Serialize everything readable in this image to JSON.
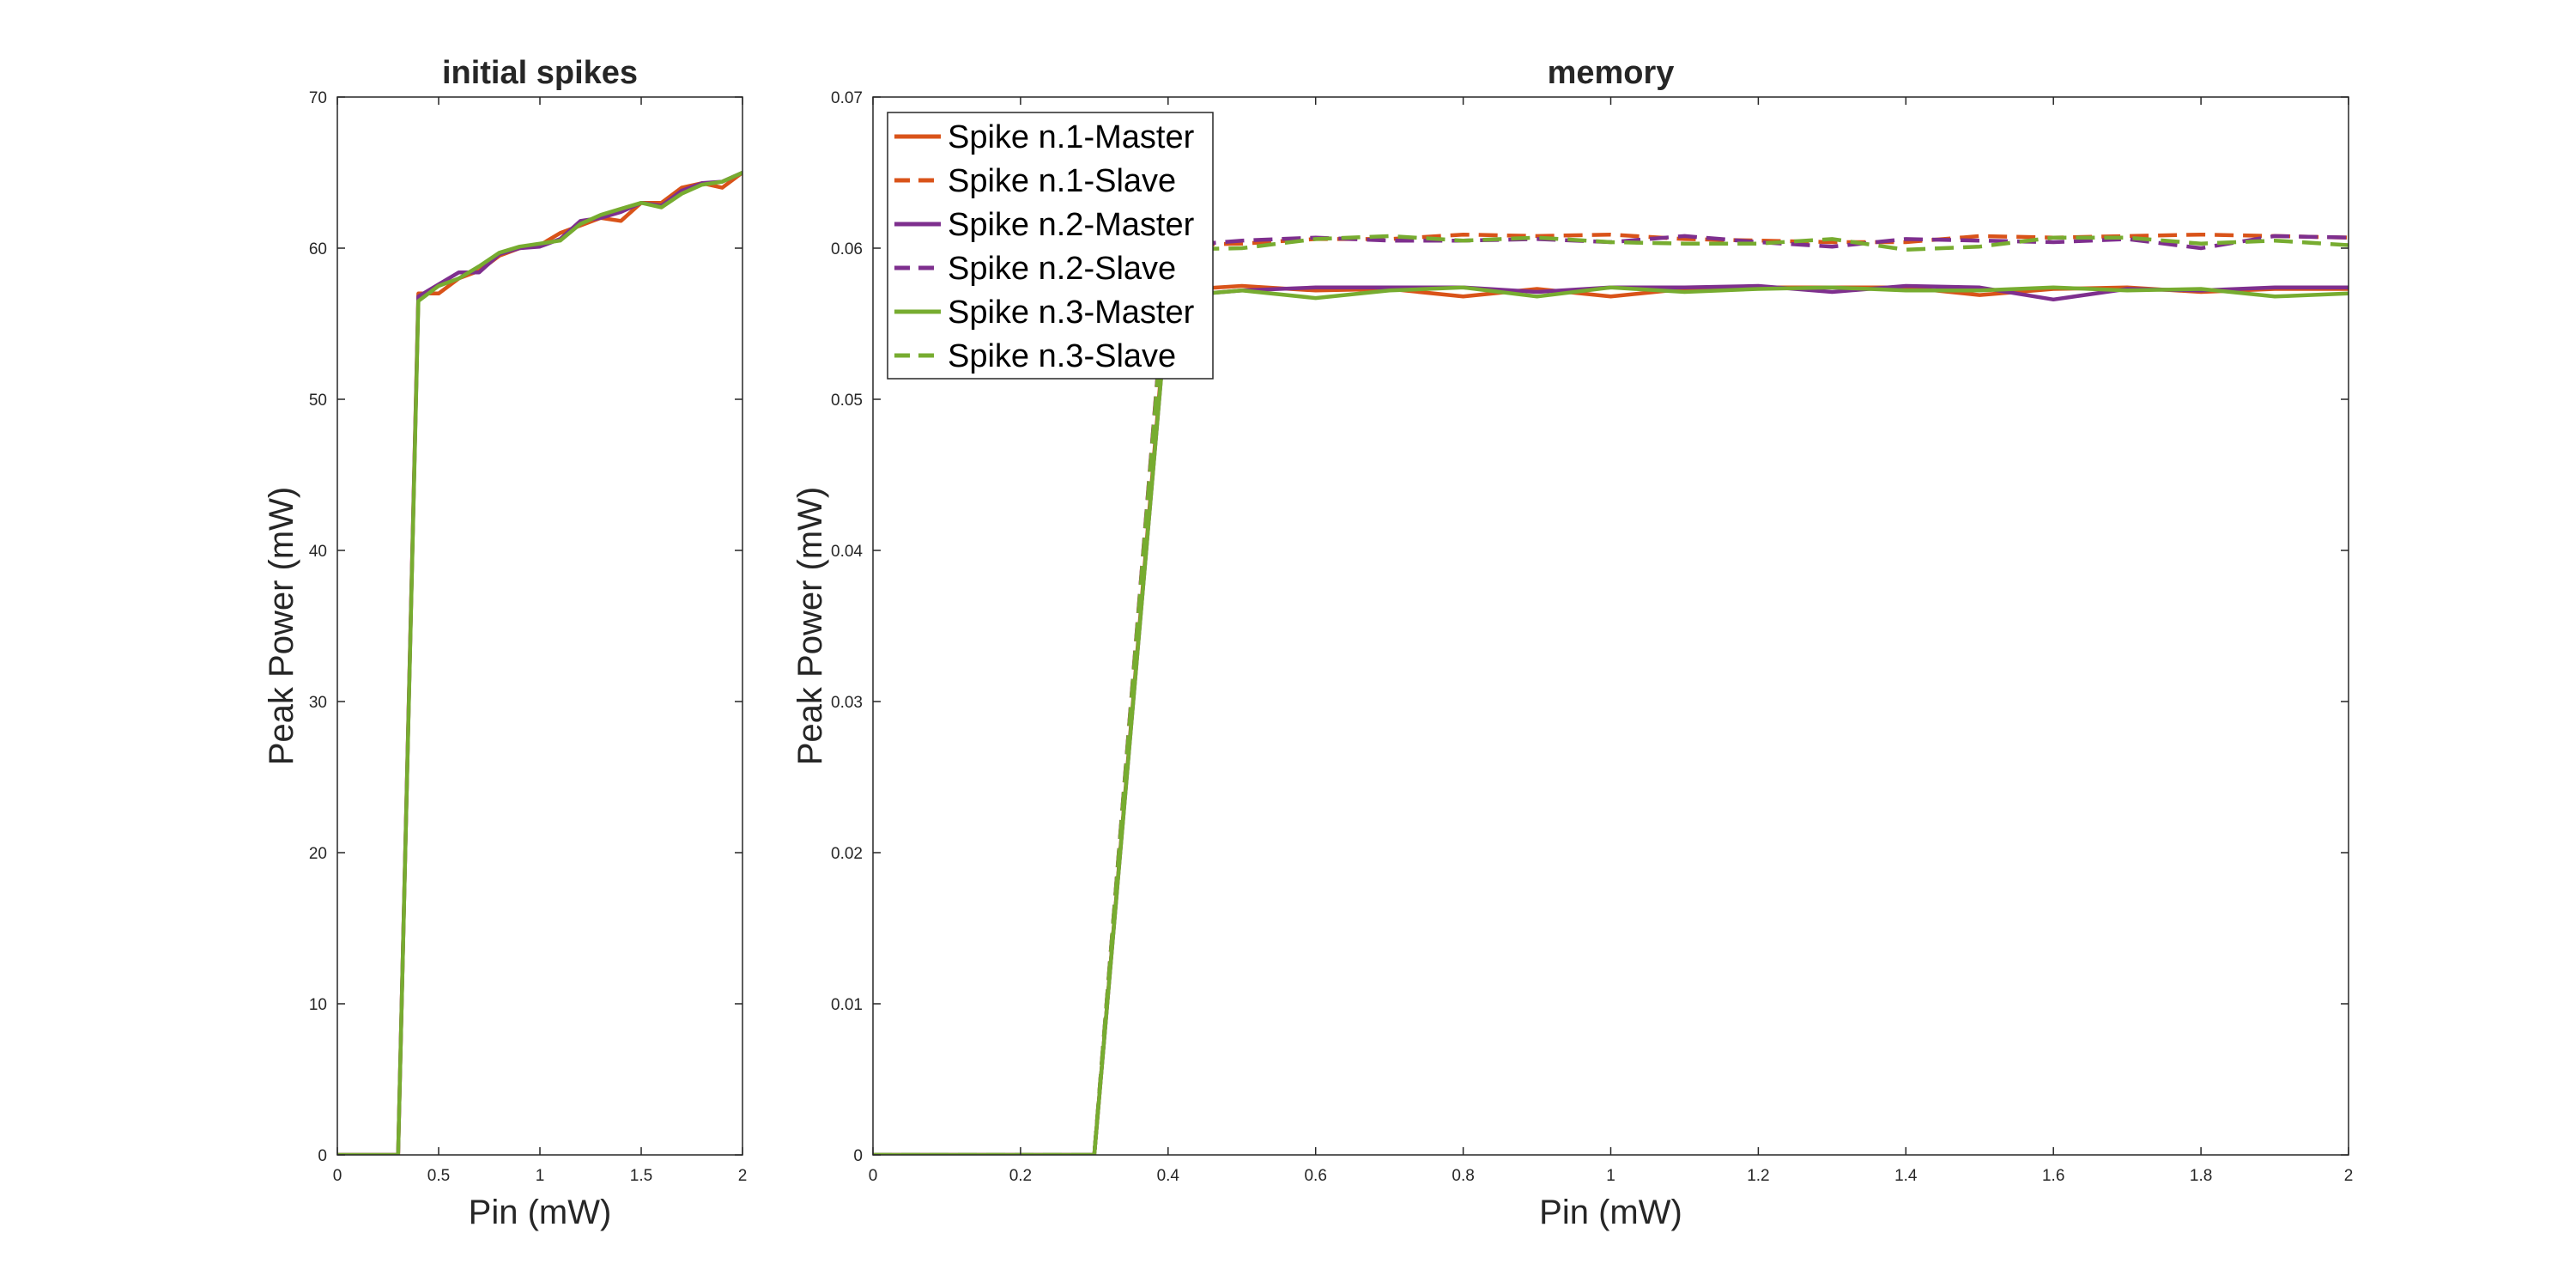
{
  "chart_data": [
    {
      "type": "line",
      "title": "initial spikes",
      "xlabel": "Pin (mW)",
      "ylabel": "Peak Power (mW)",
      "xlim": [
        0,
        2
      ],
      "ylim": [
        0,
        70
      ],
      "xticks": [
        0,
        0.5,
        1,
        1.5,
        2
      ],
      "xtick_labels": [
        "0",
        "0.5",
        "1",
        "1.5",
        "2"
      ],
      "yticks": [
        0,
        10,
        20,
        30,
        40,
        50,
        60,
        70
      ],
      "ytick_labels": [
        "0",
        "10",
        "20",
        "30",
        "40",
        "50",
        "60",
        "70"
      ],
      "grid": false,
      "legend": null,
      "series": [
        {
          "color": "#D95319",
          "dash": "solid",
          "x": [
            0,
            0.3,
            0.4,
            0.5,
            0.6,
            0.7,
            0.8,
            0.9,
            1.0,
            1.1,
            1.2,
            1.3,
            1.4,
            1.5,
            1.6,
            1.7,
            1.8,
            1.9,
            2.0
          ],
          "y": [
            0,
            0,
            57,
            57,
            58,
            58.5,
            59.5,
            60,
            60.2,
            61,
            61.5,
            62,
            61.8,
            63,
            63,
            64,
            64.3,
            64,
            65
          ]
        },
        {
          "color": "#7E2F8E",
          "dash": "solid",
          "x": [
            0,
            0.3,
            0.4,
            0.5,
            0.6,
            0.7,
            0.8,
            0.9,
            1.0,
            1.1,
            1.2,
            1.3,
            1.4,
            1.5,
            1.6,
            1.7,
            1.8,
            1.9,
            2.0
          ],
          "y": [
            0,
            0,
            56.8,
            57.6,
            58.4,
            58.4,
            59.6,
            60,
            60.1,
            60.6,
            61.8,
            62,
            62.4,
            63,
            62.8,
            63.8,
            64.3,
            64.4,
            65
          ]
        },
        {
          "color": "#77AC30",
          "dash": "solid",
          "x": [
            0,
            0.3,
            0.4,
            0.5,
            0.6,
            0.7,
            0.8,
            0.9,
            1.0,
            1.1,
            1.2,
            1.3,
            1.4,
            1.5,
            1.6,
            1.7,
            1.8,
            1.9,
            2.0
          ],
          "y": [
            0,
            0,
            56.5,
            57.5,
            58,
            58.8,
            59.7,
            60.1,
            60.3,
            60.5,
            61.6,
            62.2,
            62.6,
            63,
            62.7,
            63.6,
            64.2,
            64.4,
            65
          ]
        }
      ]
    },
    {
      "type": "line",
      "title": "memory",
      "xlabel": "Pin (mW)",
      "ylabel": "Peak Power (mW)",
      "xlim": [
        0,
        2
      ],
      "ylim": [
        0,
        0.07
      ],
      "xticks": [
        0,
        0.2,
        0.4,
        0.6,
        0.8,
        1,
        1.2,
        1.4,
        1.6,
        1.8,
        2
      ],
      "xtick_labels": [
        "0",
        "0.2",
        "0.4",
        "0.6",
        "0.8",
        "1",
        "1.2",
        "1.4",
        "1.6",
        "1.8",
        "2"
      ],
      "yticks": [
        0,
        0.01,
        0.02,
        0.03,
        0.04,
        0.05,
        0.06,
        0.07
      ],
      "ytick_labels": [
        "0",
        "0.01",
        "0.02",
        "0.03",
        "0.04",
        "0.05",
        "0.06",
        "0.07"
      ],
      "grid": false,
      "legend": "top-left",
      "series": [
        {
          "name": "Spike n.1-Master",
          "color": "#D95319",
          "dash": "solid",
          "x": [
            0,
            0.3,
            0.4,
            0.5,
            0.6,
            0.7,
            0.8,
            0.9,
            1.0,
            1.1,
            1.2,
            1.3,
            1.4,
            1.5,
            1.6,
            1.7,
            1.8,
            1.9,
            2.0
          ],
          "y": [
            0,
            0,
            0.0572,
            0.0575,
            0.0572,
            0.0573,
            0.0568,
            0.0573,
            0.0568,
            0.0573,
            0.0574,
            0.0574,
            0.0574,
            0.0569,
            0.0573,
            0.0574,
            0.0571,
            0.0573,
            0.0573
          ]
        },
        {
          "name": "Spike n.1-Slave",
          "color": "#D95319",
          "dash": "dashed",
          "x": [
            0,
            0.3,
            0.4,
            0.5,
            0.6,
            0.7,
            0.8,
            0.9,
            1.0,
            1.1,
            1.2,
            1.3,
            1.4,
            1.5,
            1.6,
            1.7,
            1.8,
            1.9,
            2.0
          ],
          "y": [
            0,
            0,
            0.0602,
            0.0603,
            0.0606,
            0.0606,
            0.0609,
            0.0608,
            0.0609,
            0.0606,
            0.0605,
            0.0604,
            0.0604,
            0.0608,
            0.0607,
            0.0608,
            0.0609,
            0.0608,
            0.0607
          ]
        },
        {
          "name": "Spike n.2-Master",
          "color": "#7E2F8E",
          "dash": "solid",
          "x": [
            0,
            0.3,
            0.4,
            0.5,
            0.6,
            0.7,
            0.8,
            0.9,
            1.0,
            1.1,
            1.2,
            1.3,
            1.4,
            1.5,
            1.6,
            1.7,
            1.8,
            1.9,
            2.0
          ],
          "y": [
            0,
            0,
            0.0568,
            0.0572,
            0.0574,
            0.0574,
            0.0574,
            0.0571,
            0.0574,
            0.0574,
            0.0575,
            0.0571,
            0.0575,
            0.0574,
            0.0566,
            0.0573,
            0.0572,
            0.0574,
            0.0574
          ]
        },
        {
          "name": "Spike n.2-Slave",
          "color": "#7E2F8E",
          "dash": "dashed",
          "x": [
            0,
            0.3,
            0.4,
            0.5,
            0.6,
            0.7,
            0.8,
            0.9,
            1.0,
            1.1,
            1.2,
            1.3,
            1.4,
            1.5,
            1.6,
            1.7,
            1.8,
            1.9,
            2.0
          ],
          "y": [
            0,
            0,
            0.0601,
            0.0605,
            0.0607,
            0.0605,
            0.0605,
            0.0606,
            0.0604,
            0.0608,
            0.0604,
            0.0601,
            0.0606,
            0.0605,
            0.0604,
            0.0606,
            0.06,
            0.0608,
            0.0607
          ]
        },
        {
          "name": "Spike n.3-Master",
          "color": "#77AC30",
          "dash": "solid",
          "x": [
            0,
            0.3,
            0.4,
            0.5,
            0.6,
            0.7,
            0.8,
            0.9,
            1.0,
            1.1,
            1.2,
            1.3,
            1.4,
            1.5,
            1.6,
            1.7,
            1.8,
            1.9,
            2.0
          ],
          "y": [
            0,
            0,
            0.0568,
            0.0572,
            0.0567,
            0.0572,
            0.0574,
            0.0568,
            0.0574,
            0.0571,
            0.0573,
            0.0574,
            0.0572,
            0.0572,
            0.0574,
            0.0572,
            0.0573,
            0.0568,
            0.057
          ]
        },
        {
          "name": "Spike n.3-Slave",
          "color": "#77AC30",
          "dash": "dashed",
          "x": [
            0,
            0.3,
            0.4,
            0.5,
            0.6,
            0.7,
            0.8,
            0.9,
            1.0,
            1.1,
            1.2,
            1.3,
            1.4,
            1.5,
            1.6,
            1.7,
            1.8,
            1.9,
            2.0
          ],
          "y": [
            0,
            0,
            0.0599,
            0.06,
            0.0606,
            0.0608,
            0.0605,
            0.0607,
            0.0604,
            0.0603,
            0.0603,
            0.0606,
            0.0599,
            0.0601,
            0.0607,
            0.0607,
            0.0603,
            0.0605,
            0.0602
          ]
        }
      ]
    }
  ]
}
